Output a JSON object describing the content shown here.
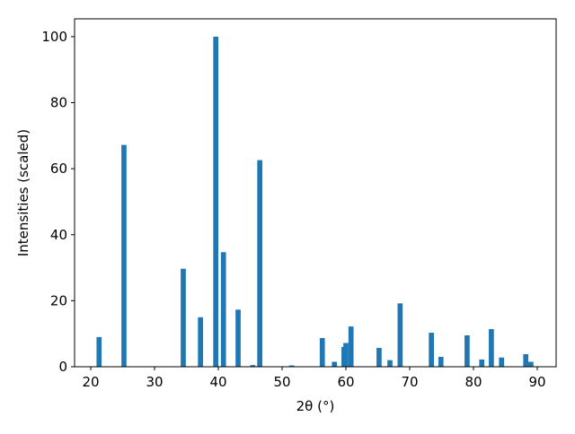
{
  "chart_data": {
    "type": "bar",
    "xlabel": "2θ (°)",
    "ylabel": "Intensities (scaled)",
    "x": [
      21.3,
      25.2,
      34.5,
      37.2,
      39.6,
      40.8,
      43.1,
      45.4,
      46.5,
      51.5,
      56.3,
      58.2,
      59.7,
      60.0,
      60.8,
      65.2,
      66.9,
      68.5,
      73.4,
      74.9,
      79.0,
      81.3,
      82.8,
      84.4,
      88.2,
      89.0
    ],
    "values": [
      9,
      67.2,
      29.7,
      15,
      100,
      34.7,
      17.3,
      0.5,
      62.6,
      0.4,
      8.7,
      1.5,
      6,
      7.2,
      12.2,
      5.7,
      2,
      19.2,
      10.3,
      3,
      9.5,
      2.2,
      11.4,
      2.8,
      3.8,
      1.5
    ],
    "color": "#1f77b4",
    "xlim": [
      17.46,
      92.96
    ],
    "ylim": [
      0,
      105.4
    ],
    "xticks": [
      20,
      30,
      40,
      50,
      60,
      70,
      80,
      90
    ],
    "yticks": [
      0,
      20,
      40,
      60,
      80,
      100
    ],
    "grid": false
  }
}
